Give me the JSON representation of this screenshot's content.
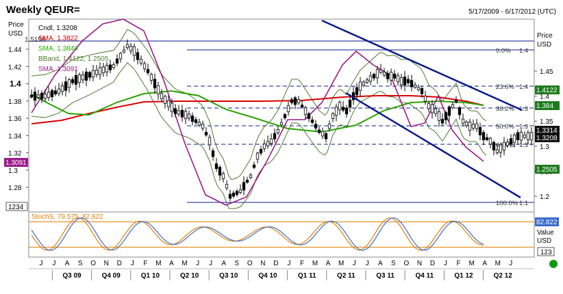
{
  "header": {
    "title": "Weekly QEUR=",
    "date_range": "5/17/2009 - 6/17/2012 (UTC)"
  },
  "chart_data": [
    {
      "type": "candlestick",
      "panel": "price",
      "frequency": "weekly",
      "instrument": "QEUR=",
      "axis_left": {
        "title": "Price",
        "unit": "USD",
        "ticks": [
          "1.44",
          "1.42",
          "1.4",
          "1.38",
          "1.36",
          "1.34",
          "1.32",
          "1.3",
          "1.28"
        ],
        "ylim": [
          1.265,
          1.45
        ]
      },
      "axis_right": {
        "title": "Price",
        "unit": "USD",
        "ticks": [
          "1.45",
          "1.4",
          "1.35",
          "1.3",
          "1.25",
          "1.2"
        ],
        "ylim": [
          1.18,
          1.5
        ]
      },
      "legend": [
        {
          "id": "cndl",
          "text": "Cndl, 1.3208",
          "color": "#000000"
        },
        {
          "id": "sma1",
          "text": "SMA, 1.3822",
          "color": "#e00000"
        },
        {
          "id": "sma2",
          "text": "SMA, 1.3840",
          "color": "#22aa00"
        },
        {
          "id": "bband",
          "text": "BBand, 1.4122, 1.2505",
          "color": "#4a7a2a"
        },
        {
          "id": "sma3",
          "text": "SMA, 1.3091",
          "color": "#9a1a8a"
        }
      ],
      "legend_overlap_text": "1.5158",
      "x_months": [
        "J",
        "J",
        "A",
        "S",
        "O",
        "N",
        "D",
        "J",
        "F",
        "M",
        "A",
        "M",
        "J",
        "J",
        "A",
        "S",
        "O",
        "N",
        "D",
        "J",
        "F",
        "M",
        "A",
        "M",
        "J",
        "J",
        "A",
        "S",
        "O",
        "N",
        "D",
        "J",
        "F",
        "M",
        "A",
        "M",
        "J"
      ],
      "x_quarters": [
        "Q3 09",
        "Q4 09",
        "Q1 10",
        "Q2 10",
        "Q3 10",
        "Q4 10",
        "Q1 11",
        "Q2 11",
        "Q3 11",
        "Q4 11",
        "Q1 12",
        "Q2 12"
      ],
      "price_series": [
        [
          0,
          1.4
        ],
        [
          4,
          1.4
        ],
        [
          8,
          1.41
        ],
        [
          12,
          1.43
        ],
        [
          16,
          1.44
        ],
        [
          20,
          1.45
        ],
        [
          24,
          1.46
        ],
        [
          28,
          1.5
        ],
        [
          30,
          1.49
        ],
        [
          34,
          1.45
        ],
        [
          38,
          1.4
        ],
        [
          42,
          1.37
        ],
        [
          46,
          1.36
        ],
        [
          50,
          1.34
        ],
        [
          52,
          1.31
        ],
        [
          54,
          1.26
        ],
        [
          56,
          1.24
        ],
        [
          58,
          1.2
        ],
        [
          61,
          1.21
        ],
        [
          64,
          1.24
        ],
        [
          66,
          1.28
        ],
        [
          68,
          1.3
        ],
        [
          70,
          1.31
        ],
        [
          72,
          1.33
        ],
        [
          74,
          1.36
        ],
        [
          76,
          1.39
        ],
        [
          78,
          1.39
        ],
        [
          80,
          1.37
        ],
        [
          82,
          1.35
        ],
        [
          84,
          1.33
        ],
        [
          86,
          1.32
        ],
        [
          88,
          1.36
        ],
        [
          90,
          1.38
        ],
        [
          92,
          1.37
        ],
        [
          94,
          1.4
        ],
        [
          96,
          1.42
        ],
        [
          98,
          1.43
        ],
        [
          100,
          1.44
        ],
        [
          102,
          1.45
        ],
        [
          104,
          1.44
        ],
        [
          106,
          1.44
        ],
        [
          108,
          1.43
        ],
        [
          110,
          1.43
        ],
        [
          112,
          1.42
        ],
        [
          114,
          1.41
        ],
        [
          116,
          1.38
        ],
        [
          118,
          1.37
        ],
        [
          120,
          1.35
        ],
        [
          122,
          1.37
        ],
        [
          124,
          1.39
        ],
        [
          126,
          1.35
        ],
        [
          128,
          1.34
        ],
        [
          130,
          1.34
        ],
        [
          132,
          1.32
        ],
        [
          134,
          1.31
        ],
        [
          136,
          1.29
        ],
        [
          138,
          1.3
        ],
        [
          140,
          1.31
        ],
        [
          142,
          1.32
        ],
        [
          144,
          1.32
        ],
        [
          146,
          1.32
        ]
      ],
      "fibonacci": [
        {
          "label": "0.0%",
          "value": 1.44
        },
        {
          "label": "23.6%",
          "value": 1.4
        },
        {
          "label": "38.2%",
          "value": 1.3
        },
        {
          "label": "50.0%",
          "value": 1.3
        },
        {
          "label": "61.8%",
          "value": 1.3
        },
        {
          "label": "100.0%",
          "value": 1.1
        }
      ],
      "horizontal_line": 1.5158,
      "right_badges": [
        {
          "text": "1.4122",
          "color": "#1e7a1e"
        },
        {
          "text": "1.384",
          "color": "#1e7a1e"
        },
        {
          "text": "1.3314",
          "color": "#111111"
        },
        {
          "text": "1.3208",
          "color": "#111111"
        },
        {
          "text": "1.2505",
          "color": "#1e7a1e"
        }
      ],
      "left_badge": {
        "text": "1.3091",
        "color": "#9a1a8a"
      },
      "corner_label": "1234"
    },
    {
      "type": "line",
      "panel": "stochastic",
      "title": "StochS, 79.575, 82.822",
      "legend_colors": {
        "main": "#e08000",
        "signal": "#3a6acc"
      },
      "right_label": "Value",
      "right_unit": "USD",
      "right_badge": "82.822",
      "corner_label": "123",
      "levels": [
        80,
        20
      ]
    }
  ]
}
